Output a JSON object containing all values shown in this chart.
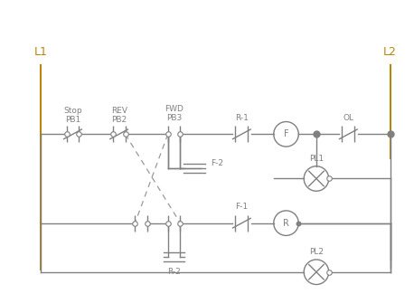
{
  "bg_color": "#ffffff",
  "line_color": "#808080",
  "rail_color": "#b8860b",
  "dashed_color": "#999999",
  "figsize": [
    4.58,
    3.35
  ],
  "dpi": 100,
  "L1_label": "L1",
  "L2_label": "L2",
  "labels": {
    "stop1": "Stop",
    "stop2": "PB1",
    "rev1": "REV",
    "rev2": "PB2",
    "fwd1": "FWD",
    "fwd2": "PB3",
    "r1": "R-1",
    "f2": "F-2",
    "f1": "F-1",
    "r2": "R-2",
    "F": "F",
    "R": "R",
    "OL": "OL",
    "PL1": "PL1",
    "PL2": "PL2"
  }
}
